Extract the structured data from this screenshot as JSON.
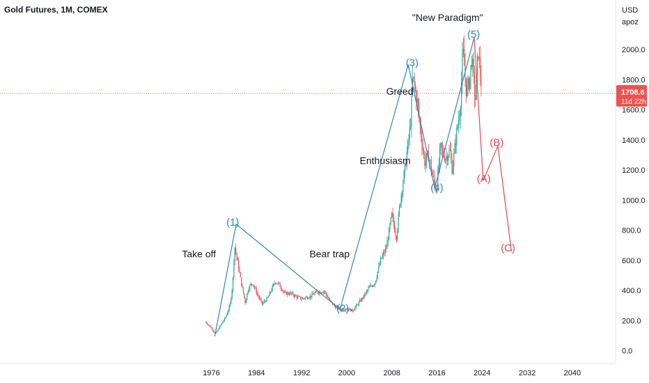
{
  "header": {
    "title": "Gold Futures, 1M, COMEX"
  },
  "chart_data": {
    "type": "candlestick-annotated",
    "title": "Gold Futures, 1M, COMEX",
    "currency": "USD",
    "scale_label": "apoz",
    "ylim": [
      0,
      2250
    ],
    "xlim": [
      1965,
      2045
    ],
    "y_ticks": [
      "0.0",
      "200.0",
      "400.0",
      "600.0",
      "800.0",
      "1000.0",
      "1200.0",
      "1400.0",
      "1600.0",
      "1800.0",
      "2000.0"
    ],
    "y_tick_values": [
      0,
      200,
      400,
      600,
      800,
      1000,
      1200,
      1400,
      1600,
      1800,
      2000
    ],
    "x_ticks": [
      "1976",
      "1984",
      "1992",
      "2000",
      "2008",
      "2016",
      "2024",
      "2032",
      "2040"
    ],
    "x_tick_values": [
      1976,
      1984,
      1992,
      2000,
      2008,
      2016,
      2024,
      2032,
      2040
    ],
    "last_price": {
      "value": 1708.6,
      "label": "1708.6",
      "countdown": "11d 22h"
    },
    "price_series": [
      [
        1975.0,
        190
      ],
      [
        1976.0,
        150
      ],
      [
        1976.7,
        110
      ],
      [
        1977.5,
        160
      ],
      [
        1978.5,
        220
      ],
      [
        1979.3,
        300
      ],
      [
        1979.8,
        450
      ],
      [
        1980.1,
        700
      ],
      [
        1980.6,
        600
      ],
      [
        1981.3,
        450
      ],
      [
        1982.0,
        320
      ],
      [
        1982.6,
        420
      ],
      [
        1983.3,
        450
      ],
      [
        1984.1,
        380
      ],
      [
        1985.0,
        310
      ],
      [
        1986.0,
        350
      ],
      [
        1987.3,
        460
      ],
      [
        1988.0,
        440
      ],
      [
        1989.0,
        380
      ],
      [
        1990.0,
        380
      ],
      [
        1991.0,
        360
      ],
      [
        1992.0,
        345
      ],
      [
        1993.5,
        360
      ],
      [
        1994.5,
        385
      ],
      [
        1996.0,
        395
      ],
      [
        1997.0,
        330
      ],
      [
        1998.0,
        290
      ],
      [
        1999.0,
        275
      ],
      [
        2000.0,
        280
      ],
      [
        2001.0,
        265
      ],
      [
        2002.0,
        310
      ],
      [
        2003.0,
        360
      ],
      [
        2004.0,
        420
      ],
      [
        2005.0,
        450
      ],
      [
        2006.0,
        600
      ],
      [
        2007.0,
        680
      ],
      [
        2008.0,
        900
      ],
      [
        2008.8,
        750
      ],
      [
        2009.5,
        1000
      ],
      [
        2010.3,
        1200
      ],
      [
        2011.3,
        1500
      ],
      [
        2011.7,
        1820
      ],
      [
        2012.5,
        1650
      ],
      [
        2013.3,
        1400
      ],
      [
        2013.8,
        1250
      ],
      [
        2014.5,
        1300
      ],
      [
        2015.3,
        1150
      ],
      [
        2015.9,
        1060
      ],
      [
        2016.6,
        1350
      ],
      [
        2017.5,
        1280
      ],
      [
        2018.3,
        1330
      ],
      [
        2018.7,
        1200
      ],
      [
        2019.5,
        1450
      ],
      [
        2020.1,
        1600
      ],
      [
        2020.6,
        2000
      ],
      [
        2021.2,
        1720
      ],
      [
        2021.8,
        1800
      ],
      [
        2022.2,
        1950
      ],
      [
        2022.8,
        1650
      ],
      [
        2023.3,
        2000
      ],
      [
        2023.7,
        1830
      ],
      [
        2024.0,
        1708.6
      ]
    ],
    "wave_count": [
      {
        "label": "(1)",
        "x": 1979.8,
        "y": 830,
        "group": "impulse"
      },
      {
        "label": "(2)",
        "x": 1999.3,
        "y": 260,
        "group": "impulse"
      },
      {
        "label": "(3)",
        "x": 2011.6,
        "y": 1890,
        "group": "impulse"
      },
      {
        "label": "(4)",
        "x": 2016.0,
        "y": 1060,
        "group": "impulse"
      },
      {
        "label": "(5)",
        "x": 2022.5,
        "y": 2080,
        "group": "impulse"
      },
      {
        "label": "(A)",
        "x": 2024.3,
        "y": 1120,
        "group": "correction"
      },
      {
        "label": "(B)",
        "x": 2026.6,
        "y": 1360,
        "group": "correction"
      },
      {
        "label": "(C)",
        "x": 2028.6,
        "y": 660,
        "group": "correction"
      }
    ],
    "annotations": [
      {
        "text": "Take off",
        "x": 1970.8,
        "y": 620
      },
      {
        "text": "Bear trap",
        "x": 1993.4,
        "y": 620
      },
      {
        "text": "Enthusiasm",
        "x": 2002.3,
        "y": 1240
      },
      {
        "text": "Greed",
        "x": 2007.0,
        "y": 1700
      },
      {
        "text": "\"New Paradigm\"",
        "x": 2011.6,
        "y": 2190
      }
    ],
    "colors": {
      "up": "#26a69a",
      "down": "#ef5350",
      "impulse": "#2e86c1",
      "correction": "#e5484d",
      "price_tag": "#ef5350"
    },
    "grid": false
  }
}
